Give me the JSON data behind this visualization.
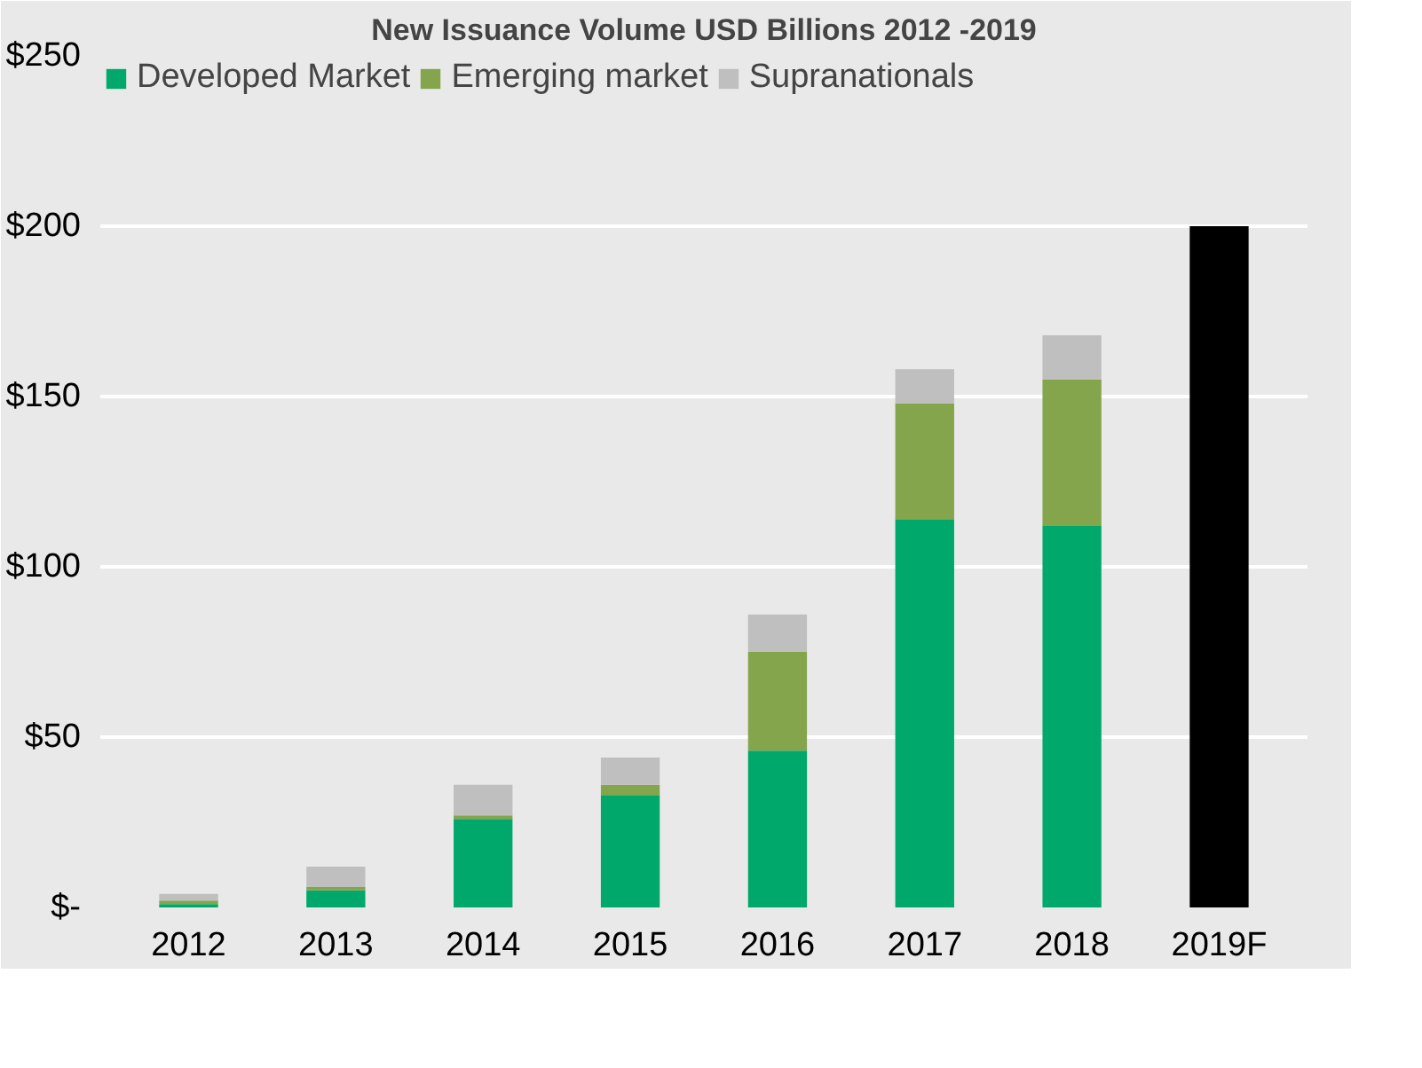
{
  "chart_data": {
    "type": "bar",
    "title": "New Issuance Volume USD Billions 2012 -2019",
    "stacked": true,
    "categories": [
      "2012",
      "2013",
      "2014",
      "2015",
      "2016",
      "2017",
      "2018",
      "2019F"
    ],
    "series": [
      {
        "name": "Developed Market",
        "color": "#00a86b",
        "values": [
          1,
          5,
          26,
          33,
          46,
          114,
          112,
          null
        ]
      },
      {
        "name": "Emerging market",
        "color": "#84a54b",
        "values": [
          1,
          1,
          1,
          3,
          29,
          34,
          43,
          null
        ]
      },
      {
        "name": "Supranationals",
        "color": "#bfbfbf",
        "values": [
          2,
          6,
          9,
          8,
          11,
          10,
          13,
          null
        ]
      },
      {
        "color": "#000000",
        "values": [
          null,
          null,
          null,
          null,
          null,
          null,
          null,
          200
        ]
      }
    ],
    "ylim": [
      0,
      250
    ],
    "yticks": [
      {
        "value": 0,
        "label": "$-"
      },
      {
        "value": 50,
        "label": "$50"
      },
      {
        "value": 100,
        "label": "$100"
      },
      {
        "value": 150,
        "label": "$150"
      },
      {
        "value": 200,
        "label": "$200"
      },
      {
        "value": 250,
        "label": "$250"
      }
    ],
    "grid": "y",
    "legend": "top left"
  }
}
